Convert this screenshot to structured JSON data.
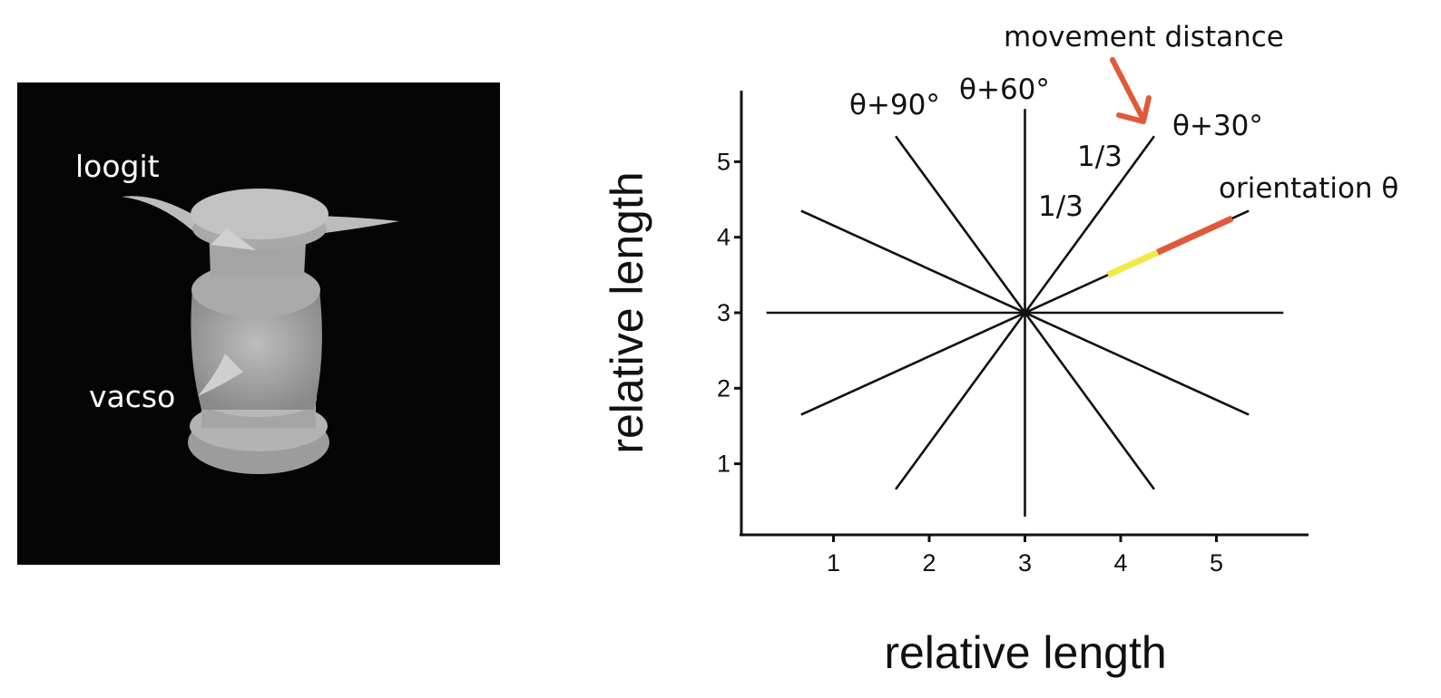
{
  "render_panel": {
    "part_labels": [
      "loogit",
      "vacso"
    ],
    "colors": {
      "background": "#050505",
      "object": "#a9a9a9"
    }
  },
  "diagram": {
    "x_axis_title": "relative length",
    "y_axis_title": "relative length",
    "x_ticks": [
      "1",
      "2",
      "3",
      "4",
      "5"
    ],
    "y_ticks": [
      "1",
      "2",
      "3",
      "4",
      "5"
    ],
    "axis_ranges": {
      "x": [
        0,
        6
      ],
      "y": [
        0,
        6
      ]
    },
    "center": [
      3,
      3
    ],
    "rays": {
      "angles_deg": [
        0,
        30,
        60,
        90,
        120,
        150
      ],
      "half_lengths": [
        2.7,
        2.7,
        2.7,
        2.7,
        2.7,
        2.7
      ]
    },
    "annotations": {
      "movement": "movement distance",
      "orientation": "orientation θ",
      "theta30": "θ+30°",
      "theta60": "θ+60°",
      "theta90": "θ+90°",
      "fraction_inner": "1/3",
      "fraction_outer": "1/3"
    },
    "movement_segments": [
      {
        "from": 1.0,
        "to": 1.6,
        "color": "#f2e84a"
      },
      {
        "from": 1.6,
        "to": 2.5,
        "color": "#e0593b"
      }
    ],
    "colors": {
      "arrow": "#e0593b",
      "rays": "#111111"
    }
  }
}
